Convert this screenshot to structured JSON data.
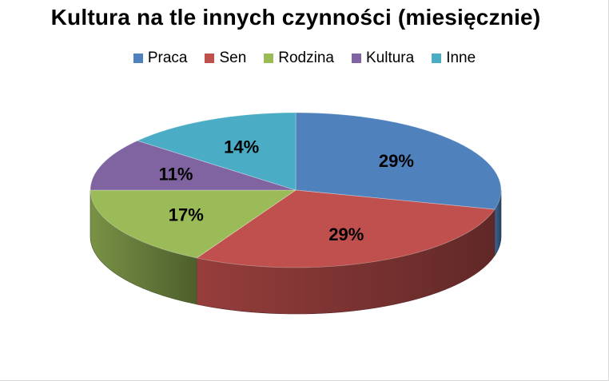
{
  "chart_data": {
    "type": "pie",
    "title": "Kultura na tle innych czynności (miesięcznie)",
    "legend_position": "top",
    "three_d": true,
    "categories": [
      "Praca",
      "Sen",
      "Rodzina",
      "Kultura",
      "Inne"
    ],
    "values": [
      29,
      29,
      17,
      11,
      14
    ],
    "labels": [
      "29%",
      "29%",
      "17%",
      "11%",
      "14%"
    ],
    "colors": [
      "#4f81bd",
      "#c0504d",
      "#9bbb59",
      "#8064a2",
      "#4bacc6"
    ]
  }
}
